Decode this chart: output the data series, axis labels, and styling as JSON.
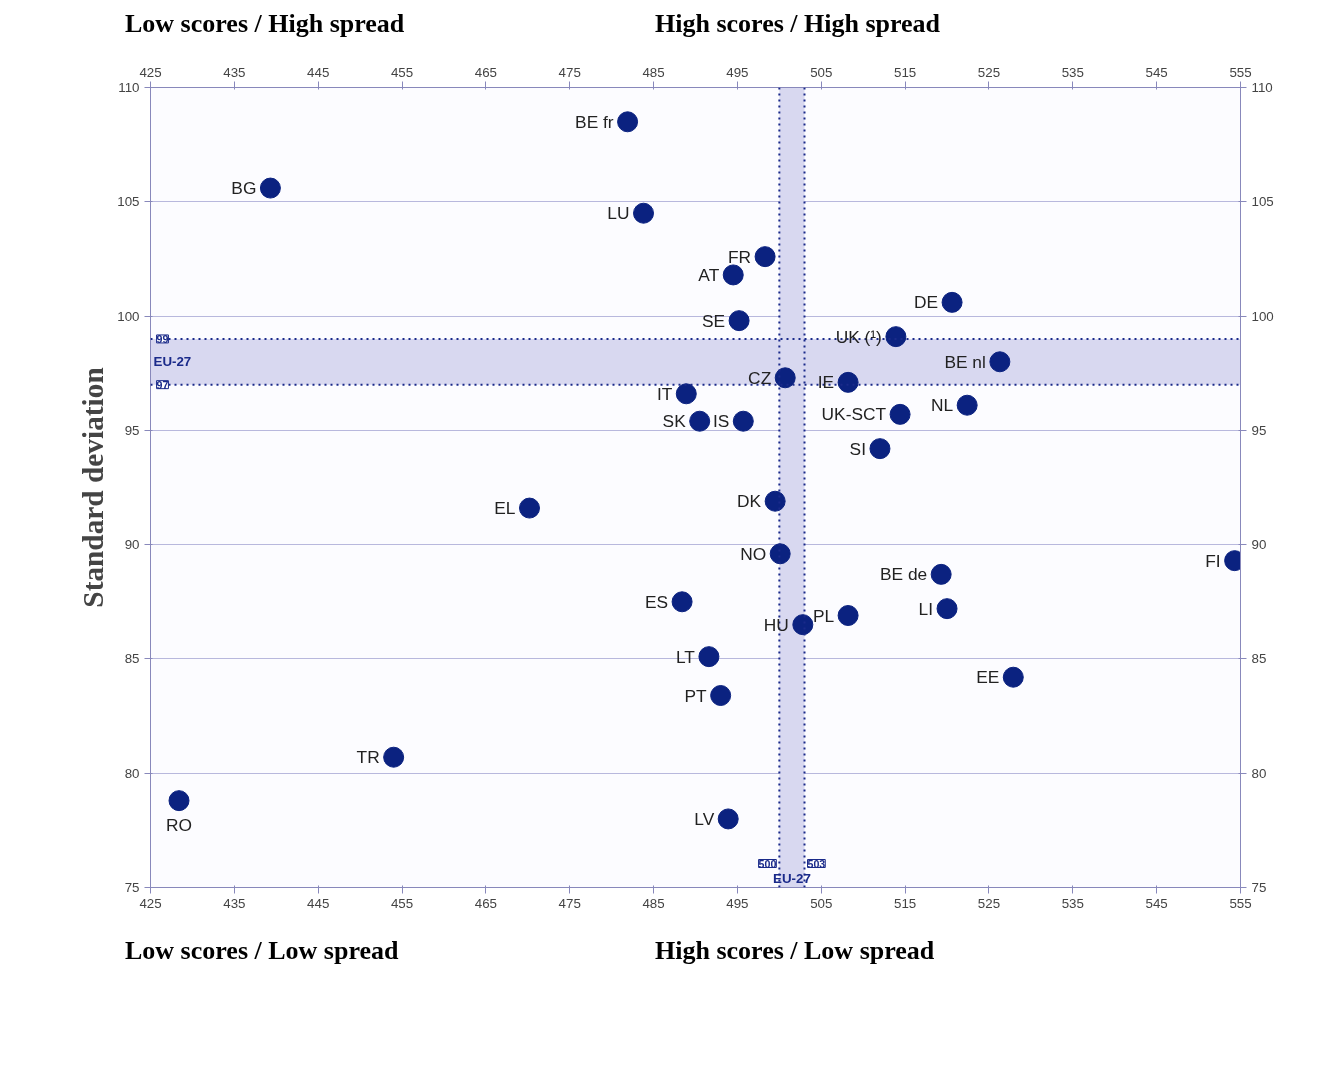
{
  "chart_data": {
    "type": "scatter",
    "ylabel": "Standard deviation",
    "x": [
      481.9,
      439.3,
      483.8,
      498.3,
      494.5,
      520.6,
      495.2,
      513.9,
      526.3,
      500.7,
      508.2,
      488.9,
      522.4,
      495.7,
      490.5,
      514.4,
      512.0,
      470.2,
      499.5,
      554.3,
      500.1,
      519.3,
      488.4,
      520.0,
      508.2,
      502.8,
      491.6,
      527.9,
      493.0,
      454.0,
      428.4,
      493.9
    ],
    "series": [
      {
        "color": "#0b2280",
        "values": [
          108.5,
          105.6,
          104.5,
          102.6,
          101.8,
          100.6,
          99.8,
          99.1,
          98.0,
          97.3,
          97.1,
          96.6,
          96.1,
          95.4,
          95.4,
          95.7,
          94.2,
          91.6,
          91.9,
          89.3,
          89.6,
          88.7,
          87.5,
          87.2,
          86.9,
          86.5,
          85.1,
          84.2,
          83.4,
          80.7,
          78.8,
          78.0
        ]
      }
    ],
    "xlim": [
      425,
      555
    ],
    "xticks": [
      425,
      435,
      445,
      455,
      465,
      475,
      485,
      495,
      505,
      515,
      525,
      535,
      545,
      555
    ],
    "x2lim": [
      425,
      555
    ],
    "x2ticks": [
      425,
      435,
      445,
      455,
      465,
      475,
      485,
      495,
      505,
      515,
      525,
      535,
      545,
      555
    ],
    "ylim": [
      75,
      110
    ],
    "yticks": [
      75,
      80,
      85,
      90,
      95,
      100,
      105,
      110
    ],
    "y2lim": [
      75,
      110
    ],
    "y2ticks": [
      75,
      80,
      85,
      90,
      95,
      100,
      105,
      110
    ],
    "grid": "y",
    "marker": "circle",
    "bands": [
      {
        "axis": "y",
        "from": 97,
        "to": 99,
        "label": "EU-27",
        "color": "#d8d8f0"
      },
      {
        "axis": "x",
        "from": 500,
        "to": 503,
        "label": "EU-27",
        "color": "#d8d8f0"
      }
    ],
    "ref_lines": [
      {
        "axis": "y",
        "value": 99,
        "label": "99",
        "line_style": "dotted",
        "color": "#1a2a8a"
      },
      {
        "axis": "y",
        "value": 97,
        "label": "97",
        "line_style": "dotted",
        "color": "#1a2a8a"
      },
      {
        "axis": "x",
        "value": 500,
        "label": "500",
        "line_style": "dotted",
        "color": "#1a2a8a"
      },
      {
        "axis": "x",
        "value": 503,
        "label": "503",
        "line_style": "dotted",
        "color": "#1a2a8a"
      }
    ],
    "annotations": [
      "Low scores / High spread",
      "High scores / High spread",
      "Low scores / Low spread",
      "High scores / Low spread",
      {
        "text": "BE fr",
        "x": 481.9,
        "y": 108.5
      },
      {
        "text": "BG",
        "x": 439.3,
        "y": 105.6
      },
      {
        "text": "LU",
        "x": 483.8,
        "y": 104.5
      },
      {
        "text": "FR",
        "x": 498.3,
        "y": 102.6
      },
      {
        "text": "AT",
        "x": 494.5,
        "y": 101.8
      },
      {
        "text": "DE",
        "x": 520.6,
        "y": 100.6
      },
      {
        "text": "SE",
        "x": 495.2,
        "y": 99.8
      },
      {
        "text": "UK (¹)",
        "x": 513.9,
        "y": 99.1
      },
      {
        "text": "BE nl",
        "x": 526.3,
        "y": 98.0
      },
      {
        "text": "CZ",
        "x": 500.7,
        "y": 97.3
      },
      {
        "text": "IE",
        "x": 508.2,
        "y": 97.1
      },
      {
        "text": "IT",
        "x": 488.9,
        "y": 96.6
      },
      {
        "text": "NL",
        "x": 522.4,
        "y": 96.1
      },
      {
        "text": "IS",
        "x": 495.7,
        "y": 95.4
      },
      {
        "text": "SK",
        "x": 490.5,
        "y": 95.4
      },
      {
        "text": "UK-SCT",
        "x": 514.4,
        "y": 95.7
      },
      {
        "text": "SI",
        "x": 512.0,
        "y": 94.2
      },
      {
        "text": "EL",
        "x": 470.2,
        "y": 91.6
      },
      {
        "text": "DK",
        "x": 499.5,
        "y": 91.9
      },
      {
        "text": "FI",
        "x": 554.3,
        "y": 89.3
      },
      {
        "text": "NO",
        "x": 500.1,
        "y": 89.6
      },
      {
        "text": "BE de",
        "x": 519.3,
        "y": 88.7
      },
      {
        "text": "ES",
        "x": 488.4,
        "y": 87.5
      },
      {
        "text": "LI",
        "x": 520.0,
        "y": 87.2
      },
      {
        "text": "PL",
        "x": 508.2,
        "y": 86.9
      },
      {
        "text": "HU",
        "x": 502.8,
        "y": 86.5
      },
      {
        "text": "LT",
        "x": 491.6,
        "y": 85.1
      },
      {
        "text": "EE",
        "x": 527.9,
        "y": 84.2
      },
      {
        "text": "PT",
        "x": 493.0,
        "y": 83.4
      },
      {
        "text": "TR",
        "x": 454.0,
        "y": 80.7
      },
      {
        "text": "RO",
        "x": 428.4,
        "y": 78.8
      },
      {
        "text": "LV",
        "x": 493.9,
        "y": 78.0
      }
    ]
  }
}
